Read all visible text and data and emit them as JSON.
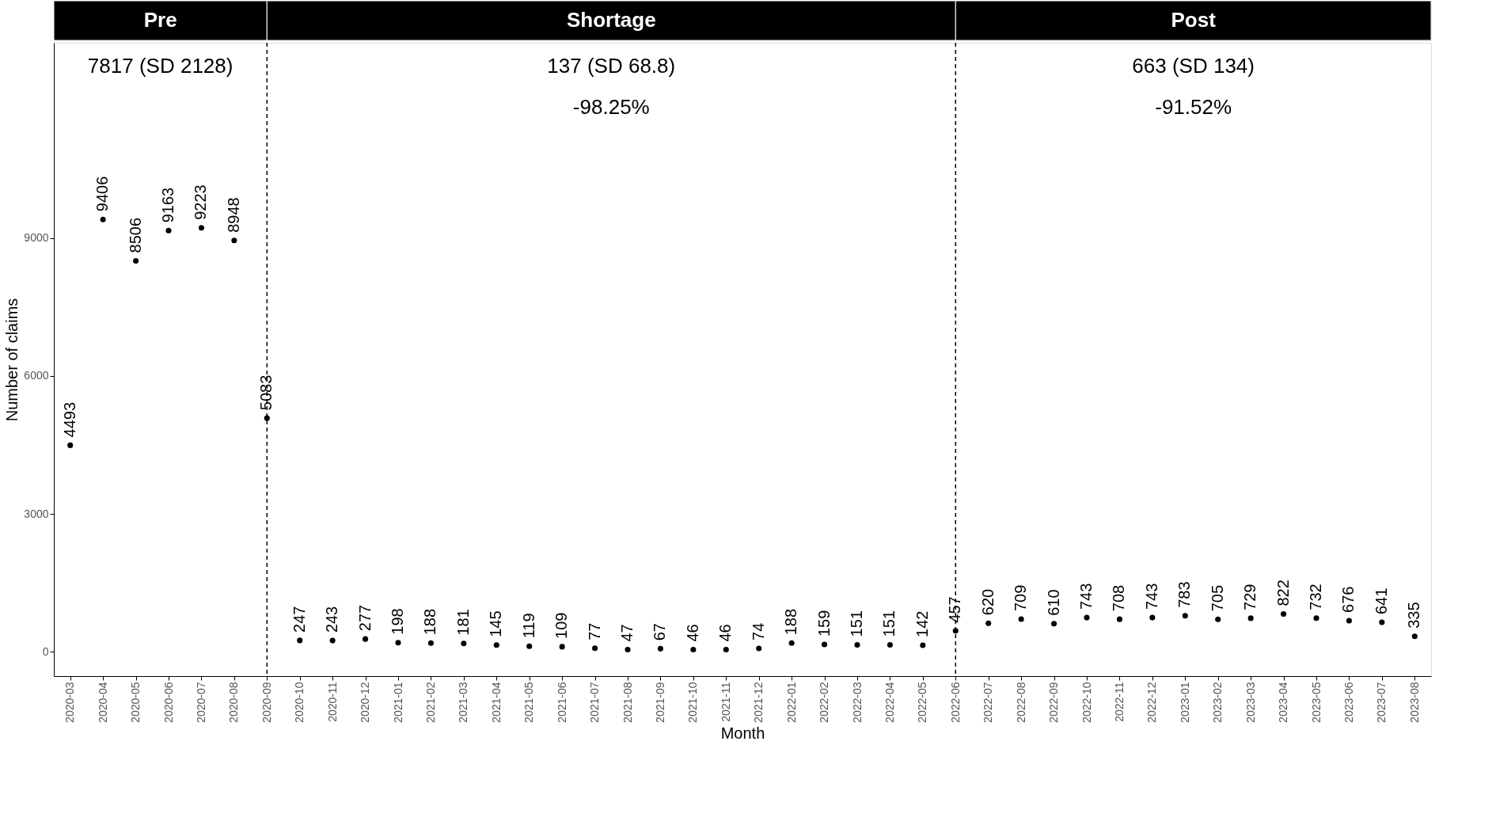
{
  "chart_data": {
    "type": "scatter",
    "xlabel": "Month",
    "ylabel": "Number of claims",
    "categories": [
      "2020-03",
      "2020-04",
      "2020-05",
      "2020-06",
      "2020-07",
      "2020-08",
      "2020-09",
      "2020-10",
      "2020-11",
      "2020-12",
      "2021-01",
      "2021-02",
      "2021-03",
      "2021-04",
      "2021-05",
      "2021-06",
      "2021-07",
      "2021-08",
      "2021-09",
      "2021-10",
      "2021-11",
      "2021-12",
      "2022-01",
      "2022-02",
      "2022-03",
      "2022-04",
      "2022-05",
      "2022-06",
      "2022-07",
      "2022-08",
      "2022-09",
      "2022-10",
      "2022-11",
      "2022-12",
      "2023-01",
      "2023-02",
      "2023-03",
      "2023-04",
      "2023-05",
      "2023-06",
      "2023-07",
      "2023-08"
    ],
    "values": [
      4493,
      9406,
      8506,
      9163,
      9223,
      8948,
      5083,
      247,
      243,
      277,
      198,
      188,
      181,
      145,
      119,
      109,
      77,
      47,
      67,
      46,
      46,
      74,
      188,
      159,
      151,
      151,
      142,
      457,
      620,
      709,
      610,
      743,
      708,
      743,
      783,
      705,
      729,
      822,
      732,
      676,
      641,
      335
    ],
    "color": "#000000",
    "marker": "circle",
    "data_labels": true,
    "grid": false,
    "ylim": [
      -530,
      13250
    ],
    "yticks": [
      0,
      3000,
      6000,
      9000
    ],
    "ref_lines": [
      {
        "axis": "x",
        "value": "2020-09",
        "line_style": "dashed",
        "color": "#000000"
      },
      {
        "axis": "x",
        "value": "2022-06",
        "line_style": "dashed",
        "color": "#000000"
      }
    ],
    "annotations": [
      "Pre",
      "Shortage",
      "Post",
      "7817 (SD 2128)",
      "137 (SD 68.8)",
      "-98.25%",
      "663 (SD 134)",
      "-91.52%"
    ]
  }
}
